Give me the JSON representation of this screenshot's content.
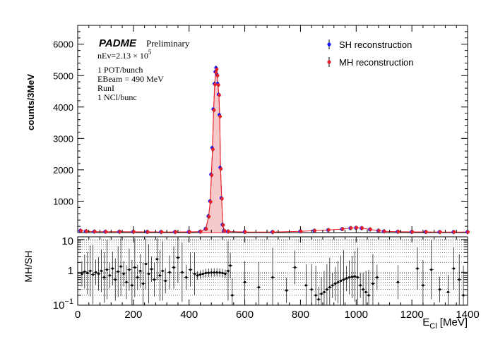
{
  "chart_data": [
    {
      "type": "scatter",
      "panel": "top",
      "ylabel": "counts/3MeV",
      "xlim": [
        0,
        1400
      ],
      "ylim": [
        0,
        6600
      ],
      "yticks": [
        1000,
        2000,
        3000,
        4000,
        5000,
        6000
      ],
      "legend_position": "top-right",
      "series": [
        {
          "name": "SH reconstruction",
          "marker_color": "#1a1aff",
          "points": [
            [
              10,
              60
            ],
            [
              30,
              40
            ],
            [
              60,
              30
            ],
            [
              100,
              28
            ],
            [
              150,
              28
            ],
            [
              200,
              26
            ],
            [
              250,
              22
            ],
            [
              300,
              20
            ],
            [
              350,
              20
            ],
            [
              400,
              22
            ],
            [
              440,
              30
            ],
            [
              460,
              120
            ],
            [
              470,
              520
            ],
            [
              476,
              1000
            ],
            [
              480,
              1850
            ],
            [
              484,
              2700
            ],
            [
              488,
              3930
            ],
            [
              492,
              4740
            ],
            [
              495,
              5120
            ],
            [
              498,
              5250
            ],
            [
              501,
              5040
            ],
            [
              504,
              4750
            ],
            [
              507,
              4400
            ],
            [
              510,
              3750
            ],
            [
              513,
              2070
            ],
            [
              517,
              1100
            ],
            [
              521,
              250
            ],
            [
              526,
              60
            ],
            [
              540,
              35
            ],
            [
              600,
              20
            ],
            [
              700,
              18
            ],
            [
              800,
              40
            ],
            [
              850,
              60
            ],
            [
              900,
              80
            ],
            [
              950,
              110
            ],
            [
              980,
              140
            ],
            [
              1000,
              150
            ],
            [
              1020,
              140
            ],
            [
              1050,
              100
            ],
            [
              1080,
              60
            ],
            [
              1100,
              40
            ],
            [
              1150,
              28
            ],
            [
              1200,
              22
            ],
            [
              1250,
              20
            ],
            [
              1300,
              18
            ],
            [
              1350,
              18
            ],
            [
              1400,
              18
            ]
          ]
        },
        {
          "name": "MH reconstruction",
          "marker_color": "#e8202a",
          "points": [
            [
              10,
              60
            ],
            [
              30,
              42
            ],
            [
              60,
              32
            ],
            [
              100,
              28
            ],
            [
              150,
              27
            ],
            [
              200,
              26
            ],
            [
              250,
              22
            ],
            [
              300,
              20
            ],
            [
              350,
              20
            ],
            [
              400,
              22
            ],
            [
              440,
              30
            ],
            [
              460,
              115
            ],
            [
              470,
              510
            ],
            [
              476,
              980
            ],
            [
              480,
              1830
            ],
            [
              484,
              2650
            ],
            [
              488,
              3900
            ],
            [
              492,
              4720
            ],
            [
              495,
              5100
            ],
            [
              498,
              5200
            ],
            [
              501,
              5000
            ],
            [
              504,
              4700
            ],
            [
              507,
              4380
            ],
            [
              510,
              3700
            ],
            [
              513,
              2030
            ],
            [
              517,
              1080
            ],
            [
              521,
              240
            ],
            [
              526,
              58
            ],
            [
              540,
              35
            ],
            [
              600,
              20
            ],
            [
              700,
              18
            ],
            [
              800,
              40
            ],
            [
              850,
              62
            ],
            [
              900,
              82
            ],
            [
              950,
              112
            ],
            [
              980,
              145
            ],
            [
              1000,
              155
            ],
            [
              1020,
              142
            ],
            [
              1050,
              102
            ],
            [
              1080,
              62
            ],
            [
              1100,
              40
            ],
            [
              1150,
              28
            ],
            [
              1200,
              22
            ],
            [
              1250,
              20
            ],
            [
              1300,
              18
            ],
            [
              1350,
              18
            ],
            [
              1400,
              18
            ]
          ]
        }
      ]
    },
    {
      "type": "scatter",
      "panel": "ratio",
      "ylabel": "MH/SH",
      "xlabel": "E_Cl [MeV]",
      "xlim": [
        0,
        1400
      ],
      "ylim_log": [
        0.1,
        12
      ],
      "xticks": [
        0,
        200,
        400,
        600,
        800,
        1000,
        1200,
        1400
      ],
      "yticks_log": [
        0.1,
        1,
        10
      ],
      "series": [
        {
          "name": "MH/SH",
          "points": [
            [
              15,
              0.9
            ],
            [
              25,
              1.05
            ],
            [
              35,
              0.95
            ],
            [
              45,
              1.1
            ],
            [
              55,
              0.85
            ],
            [
              65,
              1.0
            ],
            [
              75,
              0.9
            ],
            [
              85,
              1.1
            ],
            [
              95,
              0.7
            ],
            [
              105,
              1.2
            ],
            [
              115,
              0.8
            ],
            [
              125,
              1.3
            ],
            [
              135,
              0.6
            ],
            [
              145,
              1.05
            ],
            [
              155,
              1.5
            ],
            [
              165,
              0.9
            ],
            [
              175,
              0.5
            ],
            [
              185,
              1.2
            ],
            [
              195,
              0.4
            ],
            [
              205,
              1.4
            ],
            [
              215,
              0.7
            ],
            [
              225,
              1.1
            ],
            [
              235,
              0.45
            ],
            [
              245,
              1.8
            ],
            [
              255,
              0.9
            ],
            [
              265,
              1.25
            ],
            [
              275,
              0.6
            ],
            [
              285,
              2.5
            ],
            [
              295,
              0.8
            ],
            [
              305,
              1.1
            ],
            [
              315,
              0.55
            ],
            [
              330,
              1.0
            ],
            [
              345,
              1.4
            ],
            [
              360,
              2.8
            ],
            [
              375,
              1.0
            ],
            [
              390,
              0.7
            ],
            [
              405,
              1.2
            ],
            [
              420,
              0.9
            ],
            [
              430,
              0.8
            ],
            [
              440,
              0.85
            ],
            [
              450,
              0.9
            ],
            [
              460,
              0.95
            ],
            [
              470,
              0.97
            ],
            [
              480,
              0.98
            ],
            [
              490,
              0.99
            ],
            [
              500,
              0.99
            ],
            [
              510,
              0.98
            ],
            [
              520,
              0.95
            ],
            [
              530,
              0.9
            ],
            [
              540,
              1.1
            ],
            [
              548,
              1.6
            ],
            [
              555,
              0.2
            ],
            [
              600,
              0.5
            ],
            [
              650,
              0.35
            ],
            [
              700,
              0.7
            ],
            [
              750,
              0.28
            ],
            [
              780,
              1.4
            ],
            [
              820,
              0.4
            ],
            [
              840,
              0.3
            ],
            [
              855,
              0.2
            ],
            [
              865,
              0.15
            ],
            [
              875,
              0.22
            ],
            [
              885,
              0.25
            ],
            [
              895,
              0.3
            ],
            [
              905,
              0.35
            ],
            [
              915,
              0.4
            ],
            [
              925,
              0.45
            ],
            [
              935,
              0.5
            ],
            [
              945,
              0.55
            ],
            [
              955,
              0.6
            ],
            [
              965,
              0.65
            ],
            [
              975,
              0.7
            ],
            [
              985,
              0.72
            ],
            [
              995,
              0.75
            ],
            [
              1005,
              0.7
            ],
            [
              1015,
              0.4
            ],
            [
              1025,
              0.3
            ],
            [
              1035,
              0.25
            ],
            [
              1045,
              0.2
            ],
            [
              1060,
              0.45
            ],
            [
              1075,
              0.7
            ],
            [
              1150,
              0.5
            ],
            [
              1220,
              1.3
            ],
            [
              1240,
              0.4
            ],
            [
              1270,
              1.2
            ],
            [
              1300,
              0.3
            ],
            [
              1330,
              0.25
            ],
            [
              1350,
              1.3
            ],
            [
              1370,
              0.6
            ],
            [
              1385,
              0.2
            ]
          ]
        }
      ]
    }
  ],
  "annotations": {
    "experiment": "PADME",
    "status": "Preliminary",
    "nev_prefix": "nEv=2.13 ",
    "nev_times": "× 10",
    "nev_exp": "5",
    "line1": "1 POT/bunch",
    "line2": "EBeam = 490 MeV",
    "line3": "RunI",
    "line4": "1 NCl/bunc"
  },
  "axis_labels": {
    "top_y": "counts/3MeV",
    "ratio_y": "MH/SH",
    "x_main": "E",
    "x_sub": "Cl",
    "x_unit": " [MeV]"
  },
  "ratio_tick_labels": {
    "ten": "10",
    "one": "1",
    "tenth_base": "10",
    "tenth_exp": "−1"
  }
}
